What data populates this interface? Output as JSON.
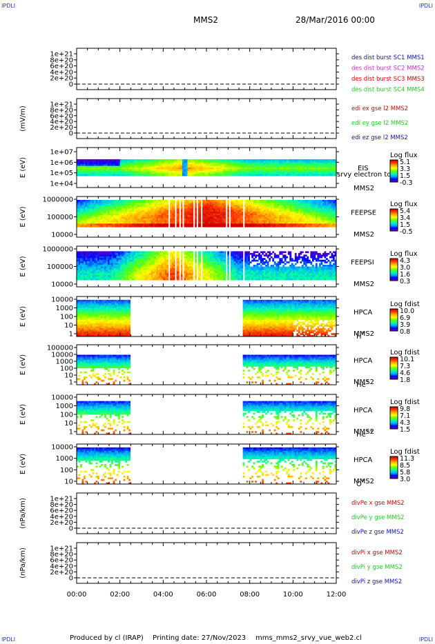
{
  "corners": {
    "tl": "IPDLI",
    "tr": "IPDLI",
    "bl": "IPDLI",
    "br": "IPDLI"
  },
  "header": {
    "title": "MMS2",
    "date": "28/Mar/2016 00:00"
  },
  "footer": {
    "producer": "Produced by cl (IRAP)",
    "printing": "Printing date: 27/Nov/2023",
    "file": "mms_mms2_srvy_vue_web2.cl"
  },
  "colors": {
    "red": "#dd0000",
    "magenta": "#dd22dd",
    "green": "#22cc22",
    "blue": "#1111cc",
    "colormap": [
      "#8800aa",
      "#0000ff",
      "#00aaff",
      "#00ffaa",
      "#66ff00",
      "#ffff00",
      "#ffaa00",
      "#ff3300",
      "#cc0000"
    ]
  },
  "chart_data": {
    "type": "heatmap",
    "x_ticks": [
      "00:00",
      "02:00",
      "04:00",
      "06:00",
      "08:00",
      "10:00",
      "12:00"
    ],
    "xlim_hours": [
      0,
      12
    ],
    "panels": [
      {
        "kind": "line",
        "ylabel": "",
        "yticks": [
          "1e+21",
          "8e+20",
          "6e+20",
          "4e+20",
          "2e+20",
          "0"
        ],
        "legend": [
          {
            "text": "des dist burst SC1 MMS1",
            "color": "blue"
          },
          {
            "text": "des dist burst SC2 MMS2",
            "color": "magenta"
          },
          {
            "text": "des dist burst SC3 MMS3",
            "color": "red"
          },
          {
            "text": "des dist burst SC4 MMS4",
            "color": "green"
          }
        ]
      },
      {
        "kind": "line",
        "ylabel": "(mV/m)",
        "yticks": [
          "1e+21",
          "8e+20",
          "6e+20",
          "4e+20",
          "2e+20",
          "0"
        ],
        "legend": [
          {
            "text": "edi ex gse l2 MMS2",
            "color": "red"
          },
          {
            "text": "edi ey gse l2 MMS2",
            "color": "green"
          },
          {
            "text": "edi ez gse l2 MMS2",
            "color": "blue"
          }
        ]
      },
      {
        "kind": "spec",
        "variant": "eis",
        "ylabel": "E (eV)",
        "yticks": [
          "1e+07",
          "1e+06",
          "1e+05",
          "1e+04"
        ],
        "labels": [
          "EIS",
          "srvy electron tof",
          "MMS2"
        ],
        "cbar_title": "Log flux",
        "cbar_ticks": [
          "5.1",
          "3.3",
          "1.5",
          "-0.3"
        ]
      },
      {
        "kind": "spec",
        "variant": "feepse",
        "ylabel": "E (eV)",
        "yticks": [
          "1000000",
          "100000",
          "10000"
        ],
        "labels": [
          "FEEPSE",
          "MMS2"
        ],
        "cbar_title": "Log flux",
        "cbar_ticks": [
          "5.4",
          "3.4",
          "1.5",
          "-0.5"
        ]
      },
      {
        "kind": "spec",
        "variant": "feepsi",
        "ylabel": "E (eV)",
        "yticks": [
          "1000000",
          "100000",
          "10000"
        ],
        "labels": [
          "FEEPSI",
          "MMS2"
        ],
        "cbar_title": "Log flux",
        "cbar_ticks": [
          "4.3",
          "3.0",
          "1.6",
          "0.3"
        ]
      },
      {
        "kind": "spec",
        "variant": "hpca_h",
        "ylabel": "E (eV)",
        "yticks": [
          "10000",
          "1000",
          "100",
          "10",
          "1"
        ],
        "labels": [
          "HPCA",
          "MMS2"
        ],
        "species": "H",
        "species_sup": "+",
        "cbar_title": "Log fdist",
        "cbar_ticks": [
          "10.0",
          "6.9",
          "3.9",
          "0.8"
        ],
        "data_gap_hours": [
          2.5,
          7.65
        ]
      },
      {
        "kind": "spec",
        "variant": "hpca_he",
        "ylabel": "E (eV)",
        "yticks": [
          "100000",
          "10000",
          "1000",
          "100",
          "10",
          "1"
        ],
        "labels": [
          "HPCA",
          "MMS2"
        ],
        "species": "He",
        "species_sup": "+",
        "cbar_title": "Log fdist",
        "cbar_ticks": [
          "10.1",
          "7.3",
          "4.6",
          "1.8"
        ],
        "data_gap_hours": [
          2.5,
          7.65
        ]
      },
      {
        "kind": "spec",
        "variant": "hpca_he2",
        "ylabel": "E (eV)",
        "yticks": [
          "10000",
          "1000",
          "100",
          "10",
          "1"
        ],
        "labels": [
          "HPCA",
          "MMS2"
        ],
        "species": "He",
        "species_sup": "++",
        "cbar_title": "Log fdist",
        "cbar_ticks": [
          "9.8",
          "7.1",
          "4.3",
          "1.5"
        ],
        "data_gap_hours": [
          2.5,
          7.65
        ]
      },
      {
        "kind": "spec",
        "variant": "hpca_o",
        "ylabel": "E (eV)",
        "yticks": [
          "10000",
          "1000",
          "100",
          "10"
        ],
        "labels": [
          "HPCA",
          "MMS2"
        ],
        "species": "O",
        "species_sup": "+",
        "cbar_title": "Log fdist",
        "cbar_ticks": [
          "11.3",
          "8.5",
          "5.8",
          "3.0"
        ],
        "data_gap_hours": [
          2.5,
          7.65
        ]
      },
      {
        "kind": "line",
        "ylabel": "(nPa/km)",
        "yticks": [
          "1e+21",
          "8e+20",
          "6e+20",
          "4e+20",
          "2e+20",
          "0"
        ],
        "legend": [
          {
            "text": "divPe x gse MMS2",
            "color": "red"
          },
          {
            "text": "divPe y gse MMS2",
            "color": "green"
          },
          {
            "text": "divPe z gse MMS2",
            "color": "blue"
          }
        ]
      },
      {
        "kind": "line",
        "ylabel": "(nPa/km)",
        "yticks": [
          "1e+21",
          "8e+20",
          "6e+20",
          "4e+20",
          "2e+20",
          "0"
        ],
        "legend": [
          {
            "text": "divPi x gse MMS2",
            "color": "red"
          },
          {
            "text": "divPi y gse MMS2",
            "color": "green"
          },
          {
            "text": "divPi z gse MMS2",
            "color": "blue"
          }
        ]
      }
    ]
  }
}
